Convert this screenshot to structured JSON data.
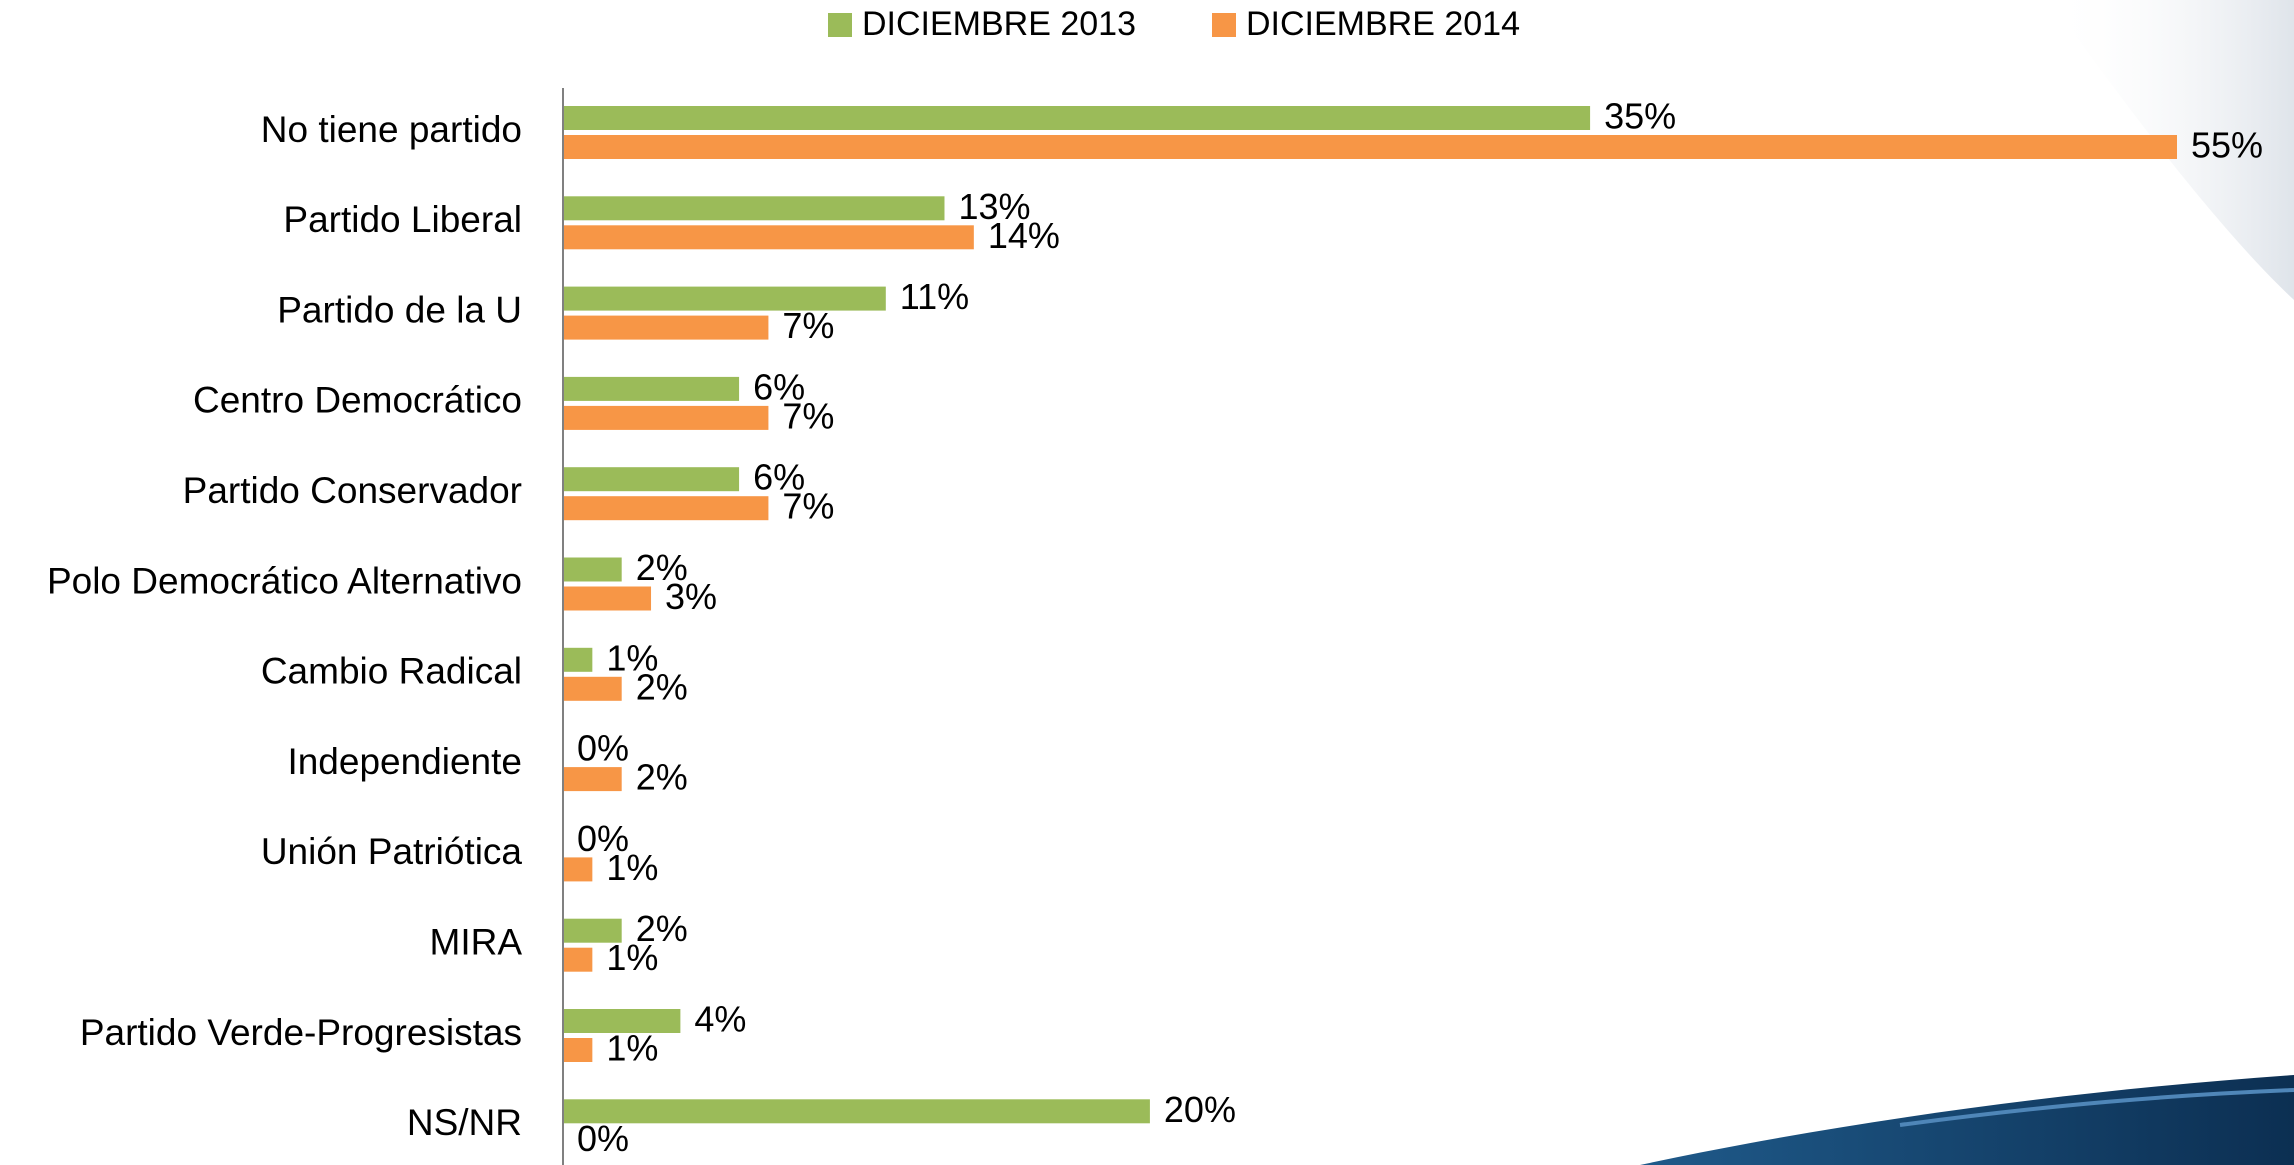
{
  "chart_data": {
    "type": "bar",
    "orientation": "horizontal",
    "categories": [
      "No tiene partido",
      "Partido Liberal",
      "Partido de la U",
      "Centro Democrático",
      "Partido Conservador",
      "Polo Democrático Alternativo",
      "Cambio Radical",
      "Independiente",
      "Unión Patriótica",
      "MIRA",
      "Partido Verde-Progresistas",
      "NS/NR"
    ],
    "series": [
      {
        "name": "DICIEMBRE 2013",
        "color": "#9bbb59",
        "values": [
          35,
          13,
          11,
          6,
          6,
          2,
          1,
          0,
          0,
          2,
          4,
          20
        ],
        "value_labels": [
          "35%",
          "13%",
          "11%",
          "6%",
          "6%",
          "2%",
          "1%",
          "0%",
          "0%",
          "2%",
          "4%",
          "20%"
        ]
      },
      {
        "name": "DICIEMBRE 2014",
        "color": "#f79646",
        "values": [
          55,
          14,
          7,
          7,
          7,
          3,
          2,
          2,
          1,
          1,
          1,
          0
        ],
        "value_labels": [
          "55%",
          "14%",
          "7%",
          "7%",
          "7%",
          "3%",
          "2%",
          "2%",
          "1%",
          "1%",
          "1%",
          "0%"
        ]
      }
    ],
    "xlim": [
      0,
      55
    ],
    "legend": "top"
  }
}
